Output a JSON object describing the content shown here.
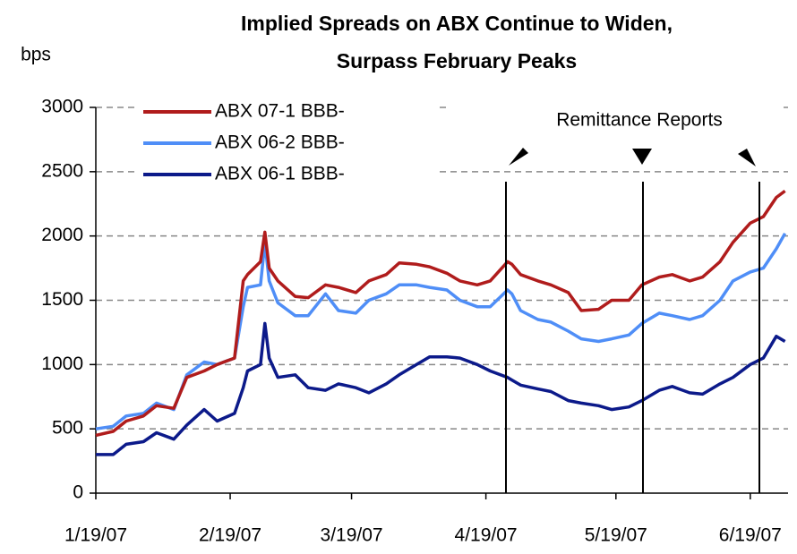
{
  "chart_data": {
    "type": "line",
    "title": [
      "Implied Spreads on ABX Continue to Widen,",
      "Surpass February Peaks"
    ],
    "y_label": "bps",
    "annotation": "Remittance Reports",
    "x": [
      "1/19/07",
      "1/23/07",
      "1/26/07",
      "1/30/07",
      "2/2/07",
      "2/6/07",
      "2/9/07",
      "2/13/07",
      "2/16/07",
      "2/20/07",
      "2/22/07",
      "2/23/07",
      "2/26/07",
      "2/27/07",
      "2/28/07",
      "3/2/07",
      "3/6/07",
      "3/9/07",
      "3/13/07",
      "3/16/07",
      "3/20/07",
      "3/23/07",
      "3/27/07",
      "3/30/07",
      "4/3/07",
      "4/6/07",
      "4/10/07",
      "4/13/07",
      "4/17/07",
      "4/20/07",
      "4/24/07",
      "4/25/07",
      "4/27/07",
      "5/1/07",
      "5/4/07",
      "5/8/07",
      "5/11/07",
      "5/15/07",
      "5/18/07",
      "5/22/07",
      "5/25/07",
      "5/29/07",
      "6/1/07",
      "6/5/07",
      "6/8/07",
      "6/12/07",
      "6/15/07",
      "6/19/07",
      "6/22/07",
      "6/25/07",
      "6/27/07"
    ],
    "series": [
      {
        "name": "ABX 07-1 BBB-",
        "color": "#b01c1c",
        "values": [
          450,
          480,
          560,
          600,
          680,
          660,
          900,
          950,
          1000,
          1050,
          1650,
          1700,
          1800,
          2030,
          1750,
          1650,
          1530,
          1520,
          1620,
          1600,
          1560,
          1650,
          1700,
          1790,
          1780,
          1760,
          1710,
          1650,
          1620,
          1650,
          1800,
          1780,
          1700,
          1650,
          1620,
          1560,
          1420,
          1430,
          1500,
          1500,
          1620,
          1680,
          1700,
          1650,
          1680,
          1800,
          1950,
          2100,
          2150,
          2300,
          2350
        ]
      },
      {
        "name": "ABX 06-2 BBB-",
        "color": "#4f8ef7",
        "values": [
          500,
          520,
          600,
          620,
          700,
          650,
          920,
          1020,
          1000,
          1050,
          1450,
          1600,
          1620,
          1950,
          1650,
          1480,
          1380,
          1380,
          1550,
          1420,
          1400,
          1500,
          1550,
          1620,
          1620,
          1600,
          1580,
          1500,
          1450,
          1450,
          1580,
          1550,
          1420,
          1350,
          1330,
          1260,
          1200,
          1180,
          1200,
          1230,
          1320,
          1400,
          1380,
          1350,
          1380,
          1500,
          1650,
          1720,
          1750,
          1900,
          2020
        ]
      },
      {
        "name": "ABX 06-1 BBB-",
        "color": "#0c1a8a",
        "values": [
          300,
          300,
          380,
          400,
          470,
          420,
          530,
          650,
          560,
          620,
          820,
          950,
          1000,
          1320,
          1050,
          900,
          920,
          820,
          800,
          850,
          820,
          780,
          850,
          920,
          1000,
          1060,
          1060,
          1050,
          1000,
          950,
          900,
          880,
          840,
          810,
          790,
          720,
          700,
          680,
          650,
          670,
          720,
          800,
          830,
          780,
          770,
          850,
          900,
          1000,
          1050,
          1220,
          1180
        ]
      }
    ],
    "xticks": [
      "1/19/07",
      "2/19/07",
      "3/19/07",
      "4/19/07",
      "5/19/07",
      "6/19/07"
    ],
    "ylim": [
      0,
      3000
    ],
    "yticks": [
      0,
      500,
      1000,
      1500,
      2000,
      2500,
      3000
    ],
    "grid": true,
    "legend": "upper-left"
  }
}
